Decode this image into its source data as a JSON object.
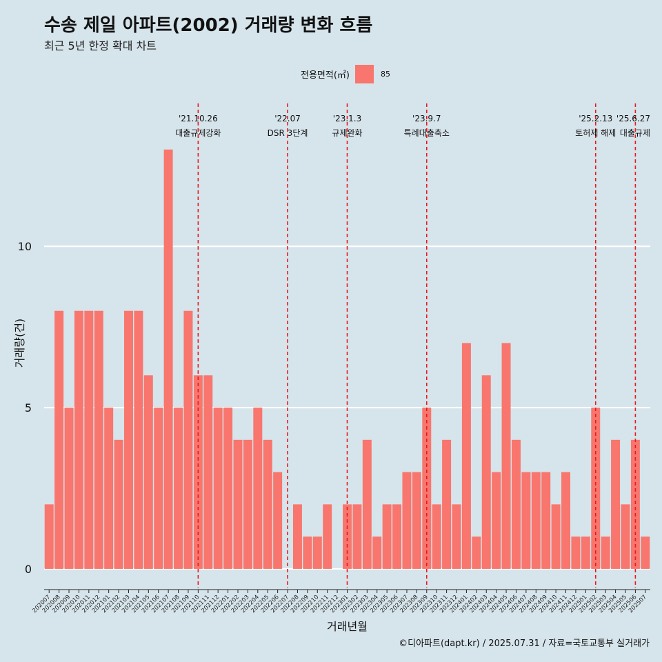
{
  "title": "수송 제일 아파트(2002) 거래량 변화 흐름",
  "subtitle": "최근 5년 한정 확대 차트",
  "legend": {
    "title": "전용면적(㎡)",
    "entries": [
      "85"
    ]
  },
  "caption": "©디아파트(dapt.kr) / 2025.07.31 / 자료=국토교통부 실거래가",
  "colors": {
    "bar": "#f8766d",
    "background": "#d6e4eb",
    "grid": "#ffffff",
    "event_line": "#e8191c"
  },
  "chart_data": {
    "type": "bar",
    "xlabel": "거래년월",
    "ylabel": "거래량(건)",
    "ylim": [
      -0.6,
      14.6
    ],
    "yticks": [
      0,
      5,
      10
    ],
    "grid": "horizontal, white",
    "legend_position": "top",
    "series": [
      {
        "name": "85",
        "color": "#f8766d"
      }
    ],
    "categories": [
      "202007",
      "202008",
      "202009",
      "202010",
      "202011",
      "202012",
      "202101",
      "202102",
      "202103",
      "202104",
      "202105",
      "202106",
      "202107",
      "202108",
      "202109",
      "202110",
      "202111",
      "202112",
      "202201",
      "202202",
      "202203",
      "202204",
      "202205",
      "202206",
      "202207",
      "202208",
      "202209",
      "202210",
      "202211",
      "202212",
      "202301",
      "202302",
      "202303",
      "202304",
      "202305",
      "202306",
      "202307",
      "202308",
      "202309",
      "202310",
      "202311",
      "202312",
      "202401",
      "202402",
      "202403",
      "202404",
      "202405",
      "202406",
      "202407",
      "202408",
      "202409",
      "202410",
      "202411",
      "202412",
      "202501",
      "202502",
      "202503",
      "202504",
      "202505",
      "202506",
      "202507"
    ],
    "values": [
      2,
      8,
      5,
      8,
      8,
      8,
      5,
      4,
      8,
      8,
      6,
      5,
      13,
      5,
      8,
      6,
      6,
      5,
      5,
      4,
      4,
      5,
      4,
      3,
      0,
      2,
      1,
      1,
      2,
      0,
      2,
      2,
      4,
      1,
      2,
      2,
      3,
      3,
      5,
      2,
      4,
      2,
      7,
      1,
      6,
      3,
      7,
      4,
      3,
      3,
      3,
      2,
      3,
      1,
      1,
      5,
      1,
      4,
      2,
      4,
      1
    ],
    "events": [
      {
        "date": "'21.10.26",
        "label": "대출규제강화",
        "category": "202110"
      },
      {
        "date": "'22.07",
        "label": "DSR 3단계",
        "category": "202207"
      },
      {
        "date": "'23.1.3",
        "label": "규제완화",
        "category": "202301"
      },
      {
        "date": "'23.9.7",
        "label": "특례대출축소",
        "category": "202309"
      },
      {
        "date": "'25.2.13",
        "label": "토허제 해제",
        "category": "202502"
      },
      {
        "date": "'25.6.27",
        "label": "대출규제",
        "category": "202506"
      }
    ]
  }
}
